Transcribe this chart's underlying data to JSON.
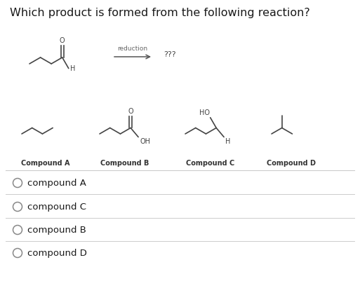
{
  "title": "Which product is formed from the following reaction?",
  "title_fontsize": 11.5,
  "background_color": "#ffffff",
  "text_color": "#1a1a1a",
  "gray_color": "#666666",
  "options": [
    "compound A",
    "compound C",
    "compound B",
    "compound D"
  ],
  "arrow_label": "reduction",
  "question_mark": "???",
  "compound_labels": [
    "Compound A",
    "Compound B",
    "Compound C",
    "Compound D"
  ],
  "divider_color": "#cccccc",
  "label_fontsize": 7.0,
  "option_fontsize": 9.5
}
